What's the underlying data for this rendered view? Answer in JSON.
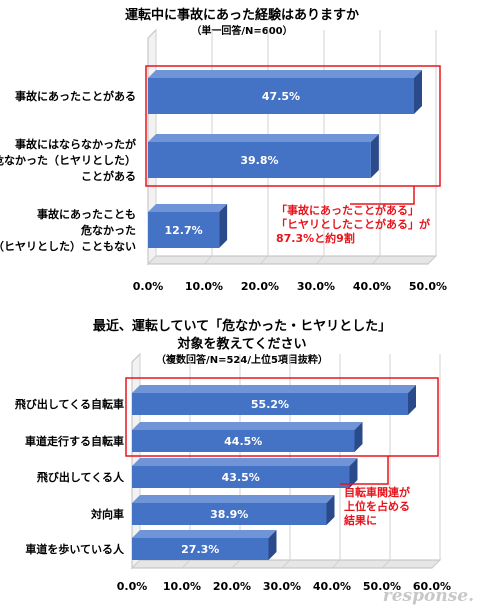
{
  "chart_data": [
    {
      "type": "bar",
      "orientation": "horizontal",
      "title": "運転中に事故にあった経験はありますか",
      "subtitle": "（単一回答/N=600）",
      "categories": [
        [
          "事故にあったことがある"
        ],
        [
          "事故にはならなかったが",
          "危なかった（ヒヤリとした）",
          "ことがある"
        ],
        [
          "事故にあったことも",
          "危なかった",
          "（ヒヤリとした）こともない"
        ]
      ],
      "values": [
        47.5,
        39.8,
        12.7
      ],
      "value_labels": [
        "47.5%",
        "39.8%",
        "12.7%"
      ],
      "xlim": [
        0,
        50
      ],
      "x_ticks": [
        "0.0%",
        "10.0%",
        "20.0%",
        "30.0%",
        "40.0%",
        "50.0%"
      ],
      "annotation": [
        "「事故にあったことがある」",
        "「ヒヤリとしたことがある」が",
        "87.3%と約9割"
      ],
      "highlight": "top-two"
    },
    {
      "type": "bar",
      "orientation": "horizontal",
      "title": [
        "最近、運転していて「危なかった・ヒヤリとした」",
        "対象を教えてください"
      ],
      "subtitle": "（複数回答/N=524/上位5項目抜粋）",
      "categories": [
        [
          "飛び出してくる自転車"
        ],
        [
          "車道走行する自転車"
        ],
        [
          "飛び出してくる人"
        ],
        [
          "対向車"
        ],
        [
          "車道を歩いている人"
        ]
      ],
      "values": [
        55.2,
        44.5,
        43.5,
        38.9,
        27.3
      ],
      "value_labels": [
        "55.2%",
        "44.5%",
        "43.5%",
        "38.9%",
        "27.3%"
      ],
      "xlim": [
        0,
        60
      ],
      "x_ticks": [
        "0.0%",
        "10.0%",
        "20.0%",
        "30.0%",
        "40.0%",
        "50.0%",
        "60.0%"
      ],
      "annotation": [
        "自転車関連が",
        "上位を占める",
        "結果に"
      ],
      "highlight": "top-two"
    }
  ],
  "colors": {
    "bar_front": "#4472c4",
    "bar_top": "#6f95d8",
    "bar_side": "#2a4a8a",
    "highlight": "#e8141c"
  },
  "watermark": "response."
}
